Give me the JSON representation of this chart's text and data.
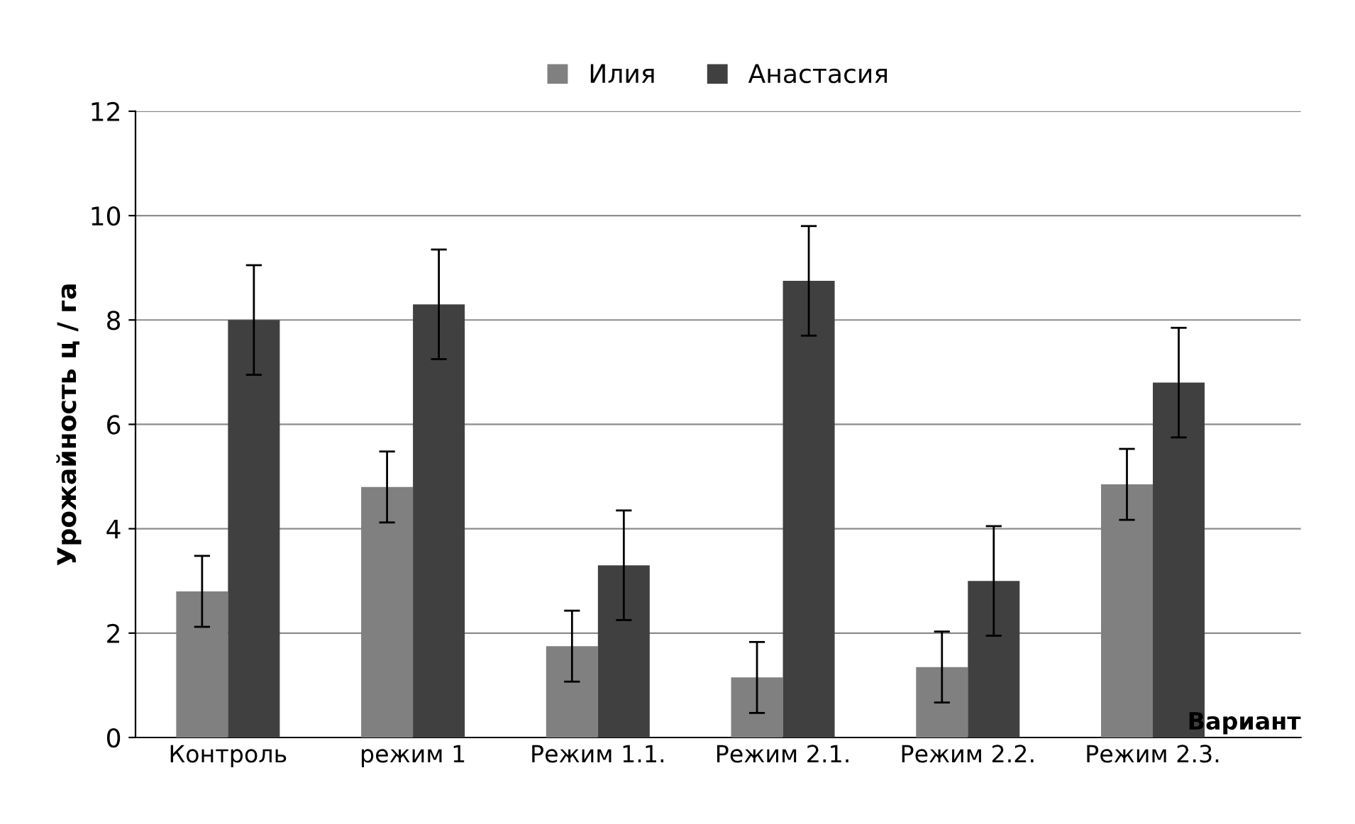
{
  "chart_data": {
    "type": "bar",
    "xlabel": "Вариант",
    "ylabel": "Урожайность ц / га",
    "categories": [
      "Контроль",
      "режим 1",
      "Режим 1.1.",
      "Режим 2.1.",
      "Режим 2.2.",
      "Режим 2.3."
    ],
    "series": [
      {
        "name": "Илия",
        "color": "#808080",
        "values": [
          2.8,
          4.8,
          1.75,
          1.15,
          1.35,
          4.85
        ],
        "errors": [
          0.68,
          0.68,
          0.68,
          0.68,
          0.68,
          0.68
        ]
      },
      {
        "name": "Анастасия",
        "color": "#404040",
        "values": [
          8.0,
          8.3,
          3.3,
          8.75,
          3.0,
          6.8
        ],
        "errors": [
          1.05,
          1.05,
          1.05,
          1.05,
          1.05,
          1.05
        ]
      }
    ],
    "ylim": [
      0,
      12
    ],
    "yticks": [
      0,
      2,
      4,
      6,
      8,
      10,
      12
    ],
    "grid": "y",
    "legend": "top"
  }
}
